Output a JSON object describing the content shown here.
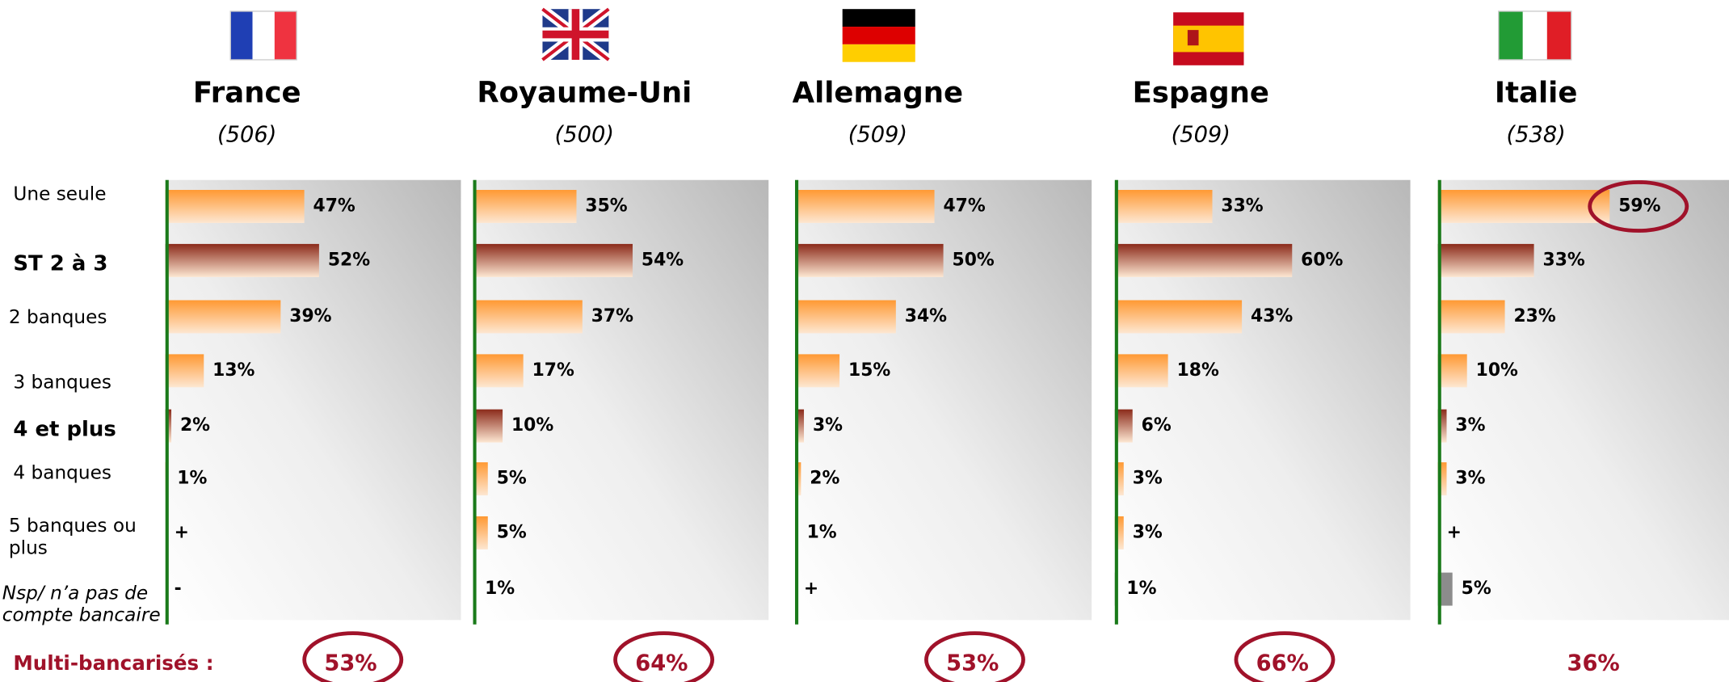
{
  "footer_label": "Multi-bancarisés :",
  "category_styles": [
    "normal",
    "bold",
    "normal",
    "normal",
    "bold",
    "normal",
    "normal",
    "italic"
  ],
  "chart_data": [
    {
      "type": "bar",
      "title": "France",
      "subtitle": "(506)",
      "categories": [
        "Une seule",
        "ST 2 à 3",
        "2 banques",
        "3 banques",
        "4 et plus",
        "4 banques",
        "5 banques ou plus",
        "Nsp/ n’a pas de compte bancaire"
      ],
      "values": [
        47,
        52,
        39,
        13,
        2,
        1,
        0,
        0
      ],
      "value_labels": [
        "47%",
        "52%",
        "39%",
        "13%",
        "2%",
        "1%",
        "+",
        "-"
      ],
      "colors": [
        "#ff9933",
        "#8b2a1a",
        "#ff9933",
        "#ff9933",
        "#8b2a1a",
        "#ff9933",
        "#ff9933",
        "#8c8c8c"
      ],
      "xlim": [
        0,
        100
      ],
      "total": 53,
      "total_label": "53%",
      "total_circled": true
    },
    {
      "type": "bar",
      "title": "Royaume-Uni",
      "subtitle": "(500)",
      "values": [
        35,
        54,
        37,
        17,
        10,
        5,
        5,
        1
      ],
      "value_labels": [
        "35%",
        "54%",
        "37%",
        "17%",
        "10%",
        "5%",
        "5%",
        "1%"
      ],
      "colors": [
        "#ff9933",
        "#8b2a1a",
        "#ff9933",
        "#ff9933",
        "#8b2a1a",
        "#ff9933",
        "#ff9933",
        "#8c8c8c"
      ],
      "xlim": [
        0,
        100
      ],
      "total": 64,
      "total_label": "64%",
      "total_circled": true
    },
    {
      "type": "bar",
      "title": "Allemagne",
      "subtitle": "(509)",
      "values": [
        47,
        50,
        34,
        15,
        3,
        2,
        1,
        0
      ],
      "value_labels": [
        "47%",
        "50%",
        "34%",
        "15%",
        "3%",
        "2%",
        "1%",
        "+"
      ],
      "colors": [
        "#ff9933",
        "#8b2a1a",
        "#ff9933",
        "#ff9933",
        "#8b2a1a",
        "#ff9933",
        "#ff9933",
        "#8c8c8c"
      ],
      "xlim": [
        0,
        100
      ],
      "total": 53,
      "total_label": "53%",
      "total_circled": true
    },
    {
      "type": "bar",
      "title": "Espagne",
      "subtitle": "(509)",
      "values": [
        33,
        60,
        43,
        18,
        6,
        3,
        3,
        1
      ],
      "value_labels": [
        "33%",
        "60%",
        "43%",
        "18%",
        "6%",
        "3%",
        "3%",
        "1%"
      ],
      "colors": [
        "#ff9933",
        "#8b2a1a",
        "#ff9933",
        "#ff9933",
        "#8b2a1a",
        "#ff9933",
        "#ff9933",
        "#8c8c8c"
      ],
      "xlim": [
        0,
        100
      ],
      "total": 66,
      "total_label": "66%",
      "total_circled": true
    },
    {
      "type": "bar",
      "title": "Italie",
      "subtitle": "(538)",
      "values": [
        59,
        33,
        23,
        10,
        3,
        3,
        0,
        5
      ],
      "value_labels": [
        "59%",
        "33%",
        "23%",
        "10%",
        "3%",
        "3%",
        "+",
        "5%"
      ],
      "colors": [
        "#ff9933",
        "#8b2a1a",
        "#ff9933",
        "#ff9933",
        "#8b2a1a",
        "#ff9933",
        "#ff9933",
        "#8c8c8c"
      ],
      "xlim": [
        0,
        100
      ],
      "total": 36,
      "total_label": "36%",
      "total_circled": false,
      "circled_index": 0
    }
  ]
}
